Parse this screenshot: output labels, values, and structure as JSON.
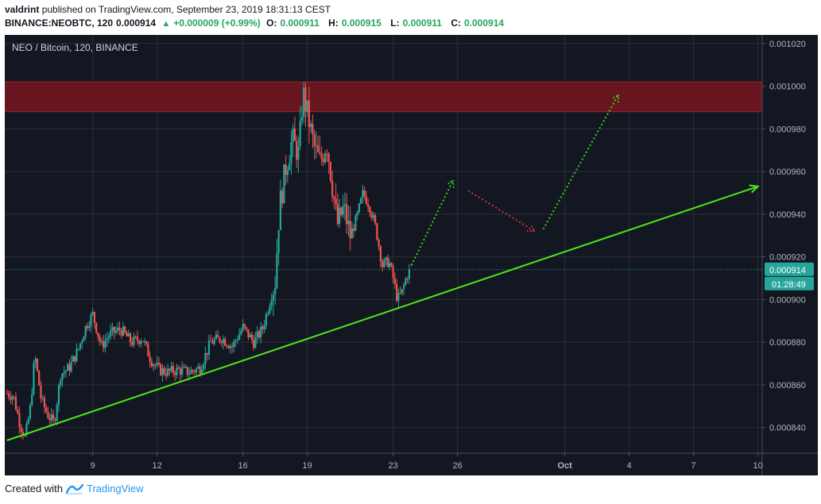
{
  "header": {
    "username": "valdrint",
    "published_text": "published on TradingView.com, September 23, 2019 18:31:13 CEST",
    "symbol_line": "BINANCE:NEOBTC, 120",
    "last_price": "0.000914",
    "change": "+0.000009 (+0.99%)",
    "open_label": "O:",
    "open": "0.000911",
    "high_label": "H:",
    "high": "0.000915",
    "low_label": "L:",
    "low": "0.000911",
    "close_label": "C:",
    "close": "0.000914"
  },
  "legend": {
    "label": "NEO / Bitcoin, 120, BINANCE"
  },
  "price_badge": {
    "value": "0.000914",
    "countdown": "01:28:49"
  },
  "footer": {
    "created_with": "Created with",
    "brand": "TradingView"
  },
  "colors": {
    "background": "#131722",
    "grid": "#2a2e39",
    "up": "#26a69a",
    "down": "#ef5350",
    "trendline": "#4ce61a",
    "resistance_zone": "#6b1620",
    "axis_text": "#b2b5be",
    "badge": "#26a69a"
  },
  "chart_data": {
    "type": "candlestick",
    "title": "NEO / Bitcoin, 120, BINANCE",
    "y_axis": {
      "ticks": [
        "0.001020",
        "0.001000",
        "0.000980",
        "0.000960",
        "0.000940",
        "0.000920",
        "0.000900",
        "0.000880",
        "0.000860",
        "0.000840"
      ],
      "range": [
        0.000828,
        0.001024
      ]
    },
    "x_axis": {
      "ticks": [
        {
          "label": "9",
          "day": 9
        },
        {
          "label": "12",
          "day": 12
        },
        {
          "label": "16",
          "day": 16
        },
        {
          "label": "19",
          "day": 19
        },
        {
          "label": "23",
          "day": 23
        },
        {
          "label": "26",
          "day": 26
        },
        {
          "label": "Oct",
          "day": 31
        },
        {
          "label": "4",
          "day": 34
        },
        {
          "label": "7",
          "day": 37
        },
        {
          "label": "10",
          "day": 40
        }
      ],
      "range_days": [
        4.9,
        40.2
      ]
    },
    "price_anchors": [
      [
        5.0,
        0.000856
      ],
      [
        5.3,
        0.000855
      ],
      [
        5.6,
        0.000842
      ],
      [
        5.85,
        0.000835
      ],
      [
        6.1,
        0.00085
      ],
      [
        6.3,
        0.000874
      ],
      [
        6.6,
        0.000853
      ],
      [
        6.9,
        0.000846
      ],
      [
        7.2,
        0.000842
      ],
      [
        7.5,
        0.000865
      ],
      [
        7.9,
        0.000868
      ],
      [
        8.3,
        0.000876
      ],
      [
        8.7,
        0.000888
      ],
      [
        9.0,
        0.000893
      ],
      [
        9.4,
        0.000878
      ],
      [
        9.8,
        0.000884
      ],
      [
        10.3,
        0.000886
      ],
      [
        10.8,
        0.00088
      ],
      [
        11.3,
        0.000882
      ],
      [
        11.7,
        0.000872
      ],
      [
        12.1,
        0.000867
      ],
      [
        12.5,
        0.000866
      ],
      [
        13.0,
        0.000867
      ],
      [
        13.5,
        0.000866
      ],
      [
        14.0,
        0.000868
      ],
      [
        14.5,
        0.00088
      ],
      [
        15.0,
        0.000882
      ],
      [
        15.5,
        0.000878
      ],
      [
        16.0,
        0.000887
      ],
      [
        16.5,
        0.00088
      ],
      [
        16.9,
        0.000886
      ],
      [
        17.2,
        0.000897
      ],
      [
        17.5,
        0.000909
      ],
      [
        17.7,
        0.000943
      ],
      [
        18.0,
        0.000962
      ],
      [
        18.3,
        0.000975
      ],
      [
        18.6,
        0.000968
      ],
      [
        18.8,
        0.000997
      ],
      [
        19.05,
        0.000985
      ],
      [
        19.3,
        0.000972
      ],
      [
        19.6,
        0.000964
      ],
      [
        19.9,
        0.000974
      ],
      [
        20.15,
        0.000955
      ],
      [
        20.4,
        0.000935
      ],
      [
        20.7,
        0.000943
      ],
      [
        21.0,
        0.00093
      ],
      [
        21.3,
        0.000938
      ],
      [
        21.6,
        0.00095
      ],
      [
        21.9,
        0.000944
      ],
      [
        22.2,
        0.000933
      ],
      [
        22.5,
        0.000916
      ],
      [
        22.8,
        0.000918
      ],
      [
        23.0,
        0.00091
      ],
      [
        23.2,
        0.0009
      ],
      [
        23.4,
        0.000903
      ],
      [
        23.6,
        0.00091
      ],
      [
        23.75,
        0.000914
      ]
    ],
    "trendline": {
      "from": [
        5.0,
        0.000834
      ],
      "to": [
        40.0,
        0.000953
      ]
    },
    "resistance_zone": {
      "low": 0.000988,
      "high": 0.001002
    },
    "current_price": 0.000914,
    "projection_up_1": {
      "from": [
        23.85,
        0.000916
      ],
      "to": [
        25.8,
        0.000956
      ]
    },
    "projection_down": {
      "from": [
        26.5,
        0.000951
      ],
      "to": [
        29.6,
        0.000932
      ]
    },
    "projection_up_2": {
      "from": [
        30.0,
        0.000933
      ],
      "to": [
        33.5,
        0.000996
      ]
    }
  }
}
